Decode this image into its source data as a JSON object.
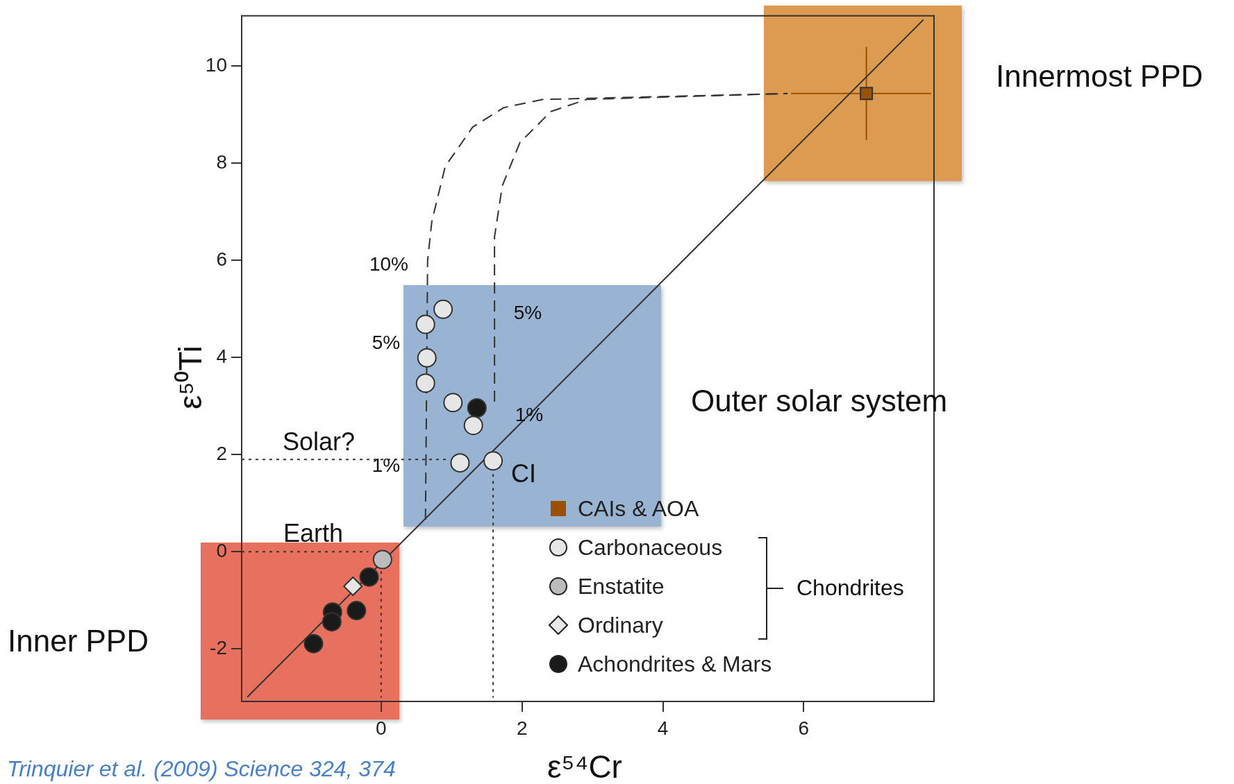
{
  "chart_data": {
    "type": "scatter",
    "xlabel": "ε⁵⁴Cr",
    "ylabel": "ε⁵⁰Ti",
    "xlim": [
      -1.98,
      7.85
    ],
    "ylim": [
      -3.08,
      11.03
    ],
    "xticks": [
      0,
      2,
      4,
      6
    ],
    "yticks": [
      -2,
      0,
      2,
      4,
      6,
      8,
      10
    ],
    "grid": false,
    "legend": "bottom right",
    "series": [
      {
        "name": "CAIs & AOA",
        "color": "#9a5200",
        "marker": "square",
        "x": [
          6.89
        ],
        "values": [
          9.43
        ],
        "errors": [
          [
            8.47,
            10.39
          ]
        ],
        "xerrors": [
          [
            5.82,
            7.81
          ]
        ]
      },
      {
        "name": "Carbonaceous",
        "color": "#e6e6e6",
        "marker": "circle",
        "x": [
          0.63,
          0.88,
          0.65,
          0.63,
          1.02,
          1.31,
          1.12,
          1.59
        ],
        "values": [
          4.68,
          4.99,
          3.99,
          3.47,
          3.07,
          2.6,
          1.83,
          1.87
        ]
      },
      {
        "name": "Enstatite",
        "color": "#bbbbbb",
        "marker": "circle",
        "x": [
          0.02
        ],
        "values": [
          -0.16
        ]
      },
      {
        "name": "Ordinary",
        "color": "#e6e6e6",
        "marker": "diamond",
        "x": [
          -0.4
        ],
        "values": [
          -0.71
        ]
      },
      {
        "name": "Achondrites & Mars",
        "color": "#1a1a1a",
        "marker": "circle",
        "x": [
          1.36,
          -0.17,
          -0.69,
          -0.7,
          -0.35,
          -0.96
        ],
        "values": [
          2.96,
          -0.52,
          -1.24,
          -1.44,
          -1.21,
          -1.89
        ]
      },
      {
        "type": "line",
        "color": "#333333",
        "marker": "none",
        "line_style": "solid",
        "x": [
          -1.9,
          7.7
        ],
        "values": [
          -2.99,
          10.95
        ]
      },
      {
        "type": "line",
        "color": "#333333",
        "marker": "none",
        "line_style": "dashed",
        "x": [
          0.63,
          0.66,
          0.72,
          0.91,
          1.3,
          1.74,
          2.3,
          5.77
        ],
        "values": [
          0.66,
          5.99,
          6.8,
          7.93,
          8.74,
          9.14,
          9.31,
          9.43
        ]
      },
      {
        "type": "line",
        "color": "#333333",
        "marker": "none",
        "line_style": "dashed",
        "x": [
          1.61,
          1.61,
          1.72,
          1.97,
          2.41,
          2.92,
          5.77
        ],
        "values": [
          3.09,
          6.48,
          7.53,
          8.42,
          9.06,
          9.31,
          9.43
        ]
      },
      {
        "type": "line",
        "color": "#333333",
        "marker": "none",
        "line_style": "dotted",
        "x": [
          -1.98,
          0.95
        ],
        "values": [
          1.9,
          1.9
        ]
      },
      {
        "type": "line",
        "color": "#333333",
        "marker": "none",
        "line_style": "dotted",
        "x": [
          1.59,
          1.59
        ],
        "values": [
          1.6,
          -3.0
        ]
      },
      {
        "type": "line",
        "color": "#333333",
        "marker": "none",
        "line_style": "dotted",
        "x": [
          -1.98,
          -0.18
        ],
        "values": [
          0,
          0
        ]
      },
      {
        "type": "line",
        "color": "#333333",
        "marker": "none",
        "line_style": "dotted",
        "x": [
          0,
          0
        ],
        "values": [
          -0.4,
          -3.0
        ]
      }
    ],
    "annotations": [
      "10%",
      "5%",
      "1%",
      "5%",
      "1%",
      "Solar?",
      "Earth",
      "CI",
      "Innermost PPD",
      "Outer solar system",
      "Inner PPD",
      "Chondrites",
      "Trinquier et al. (2009) Science 324, 374"
    ]
  }
}
